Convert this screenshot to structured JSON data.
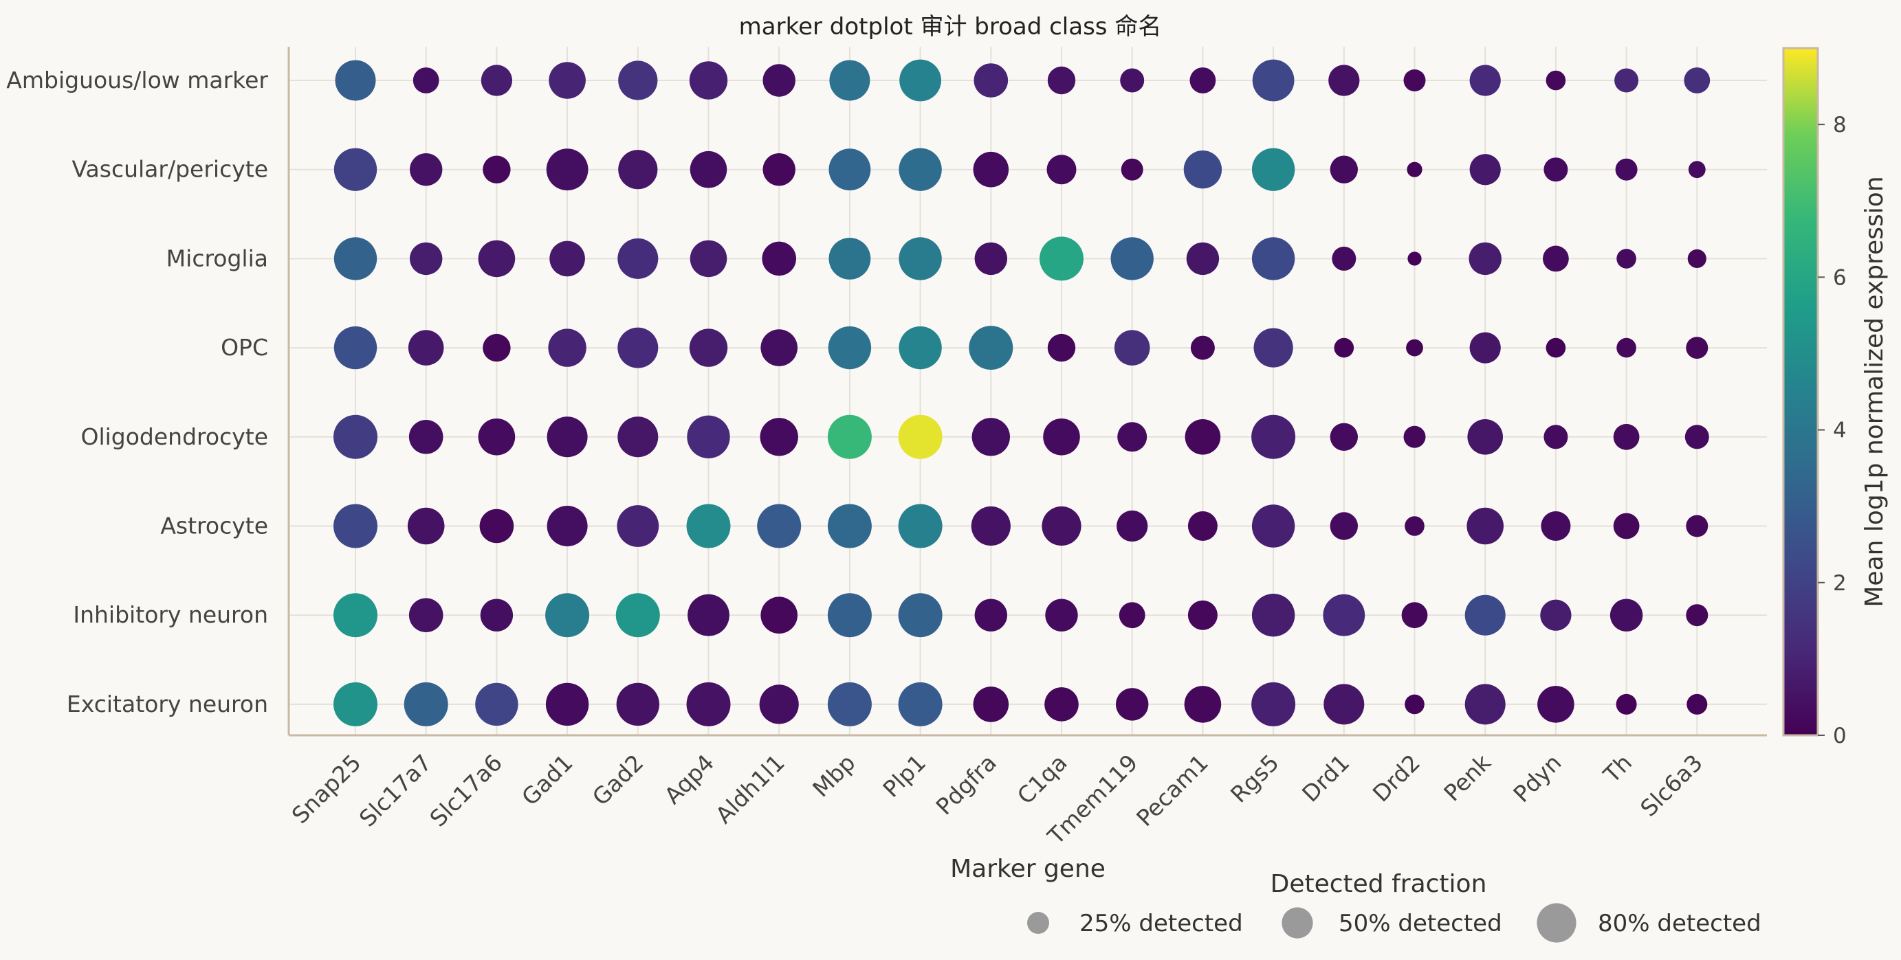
{
  "chart_data": {
    "type": "dotplot",
    "title": "marker dotplot 审计 broad class 命名",
    "xlabel": "Marker gene",
    "colorbar_label": "Mean log1p normalized expression",
    "colorbar_range": [
      0,
      9
    ],
    "colorbar_ticks": [
      0,
      2,
      4,
      6,
      8
    ],
    "colormap": "viridis",
    "genes": [
      "Snap25",
      "Slc17a7",
      "Slc17a6",
      "Gad1",
      "Gad2",
      "Aqp4",
      "Aldh1l1",
      "Mbp",
      "Plp1",
      "Pdgfra",
      "C1qa",
      "Tmem119",
      "Pecam1",
      "Rgs5",
      "Drd1",
      "Drd2",
      "Penk",
      "Pdyn",
      "Th",
      "Slc6a3"
    ],
    "cell_types": [
      "Ambiguous/low marker",
      "Vascular/pericyte",
      "Microglia",
      "OPC",
      "Oligodendrocyte",
      "Astrocyte",
      "Inhibitory neuron",
      "Excitatory neuron"
    ],
    "mean_expression": [
      [
        3.0,
        0.4,
        0.8,
        1.0,
        1.5,
        0.9,
        0.4,
        3.8,
        4.5,
        1.0,
        0.5,
        0.5,
        0.3,
        2.2,
        0.5,
        0.2,
        1.2,
        0.2,
        1.1,
        1.4
      ],
      [
        2.0,
        0.5,
        0.2,
        0.4,
        0.6,
        0.4,
        0.2,
        3.3,
        3.6,
        0.3,
        0.3,
        0.2,
        2.3,
        4.8,
        0.3,
        0.1,
        0.7,
        0.3,
        0.3,
        0.3
      ],
      [
        3.2,
        0.8,
        0.7,
        0.7,
        1.3,
        0.8,
        0.3,
        3.9,
        4.2,
        0.5,
        6.0,
        3.1,
        0.6,
        2.3,
        0.3,
        0.1,
        0.8,
        0.3,
        0.3,
        0.2
      ],
      [
        2.5,
        0.7,
        0.2,
        1.0,
        1.2,
        0.8,
        0.4,
        3.8,
        4.6,
        3.9,
        0.2,
        1.4,
        0.2,
        1.5,
        0.1,
        0.1,
        0.6,
        0.1,
        0.2,
        0.2
      ],
      [
        1.8,
        0.4,
        0.3,
        0.4,
        0.6,
        1.2,
        0.3,
        6.8,
        8.8,
        0.4,
        0.3,
        0.3,
        0.2,
        0.9,
        0.3,
        0.2,
        0.6,
        0.3,
        0.3,
        0.3
      ],
      [
        2.2,
        0.5,
        0.2,
        0.4,
        1.0,
        4.9,
        2.9,
        3.4,
        4.4,
        0.5,
        0.5,
        0.3,
        0.2,
        0.9,
        0.3,
        0.2,
        0.7,
        0.3,
        0.2,
        0.2
      ],
      [
        5.3,
        0.5,
        0.4,
        4.3,
        5.3,
        0.4,
        0.2,
        3.1,
        3.2,
        0.3,
        0.3,
        0.2,
        0.2,
        0.8,
        1.2,
        0.2,
        2.3,
        0.8,
        0.4,
        0.2
      ],
      [
        5.2,
        3.2,
        2.1,
        0.3,
        0.5,
        0.5,
        0.4,
        2.7,
        2.9,
        0.2,
        0.2,
        0.2,
        0.2,
        0.9,
        0.6,
        0.1,
        0.8,
        0.3,
        0.1,
        0.1
      ]
    ],
    "detected_fraction": [
      [
        0.85,
        0.35,
        0.5,
        0.7,
        0.8,
        0.75,
        0.55,
        0.85,
        0.9,
        0.6,
        0.4,
        0.3,
        0.35,
        0.9,
        0.5,
        0.25,
        0.5,
        0.2,
        0.3,
        0.35
      ],
      [
        0.95,
        0.55,
        0.4,
        0.9,
        0.8,
        0.7,
        0.55,
        0.9,
        0.95,
        0.65,
        0.45,
        0.25,
        0.75,
        0.95,
        0.4,
        0.12,
        0.5,
        0.3,
        0.25,
        0.15
      ],
      [
        0.95,
        0.55,
        0.7,
        0.65,
        0.85,
        0.7,
        0.6,
        0.9,
        0.95,
        0.55,
        1.0,
        0.95,
        0.55,
        0.95,
        0.3,
        0.1,
        0.55,
        0.35,
        0.2,
        0.18
      ],
      [
        0.95,
        0.65,
        0.4,
        0.75,
        0.85,
        0.75,
        0.7,
        0.95,
        0.95,
        1.0,
        0.4,
        0.65,
        0.3,
        0.8,
        0.2,
        0.15,
        0.5,
        0.2,
        0.2,
        0.25
      ],
      [
        1.0,
        0.6,
        0.7,
        0.85,
        0.85,
        0.95,
        0.75,
        1.0,
        1.0,
        0.75,
        0.7,
        0.45,
        0.65,
        1.0,
        0.4,
        0.25,
        0.65,
        0.3,
        0.35,
        0.3
      ],
      [
        1.0,
        0.7,
        0.6,
        0.85,
        0.9,
        1.0,
        1.0,
        1.0,
        1.0,
        0.8,
        0.8,
        0.5,
        0.45,
        0.95,
        0.4,
        0.2,
        0.7,
        0.45,
        0.35,
        0.25
      ],
      [
        1.0,
        0.6,
        0.55,
        1.0,
        1.0,
        0.9,
        0.7,
        1.0,
        1.0,
        0.55,
        0.55,
        0.35,
        0.45,
        0.95,
        0.9,
        0.35,
        0.85,
        0.5,
        0.55,
        0.25
      ],
      [
        1.0,
        1.0,
        0.95,
        0.95,
        0.95,
        1.0,
        0.8,
        1.0,
        1.0,
        0.65,
        0.6,
        0.55,
        0.7,
        1.0,
        0.85,
        0.2,
        0.85,
        0.7,
        0.22,
        0.22
      ]
    ],
    "size_legend": {
      "title": "Detected fraction",
      "entries": [
        {
          "fraction": 0.25,
          "label": "25% detected"
        },
        {
          "fraction": 0.5,
          "label": "50% detected"
        },
        {
          "fraction": 0.8,
          "label": "80% detected"
        }
      ]
    },
    "grid": true
  }
}
